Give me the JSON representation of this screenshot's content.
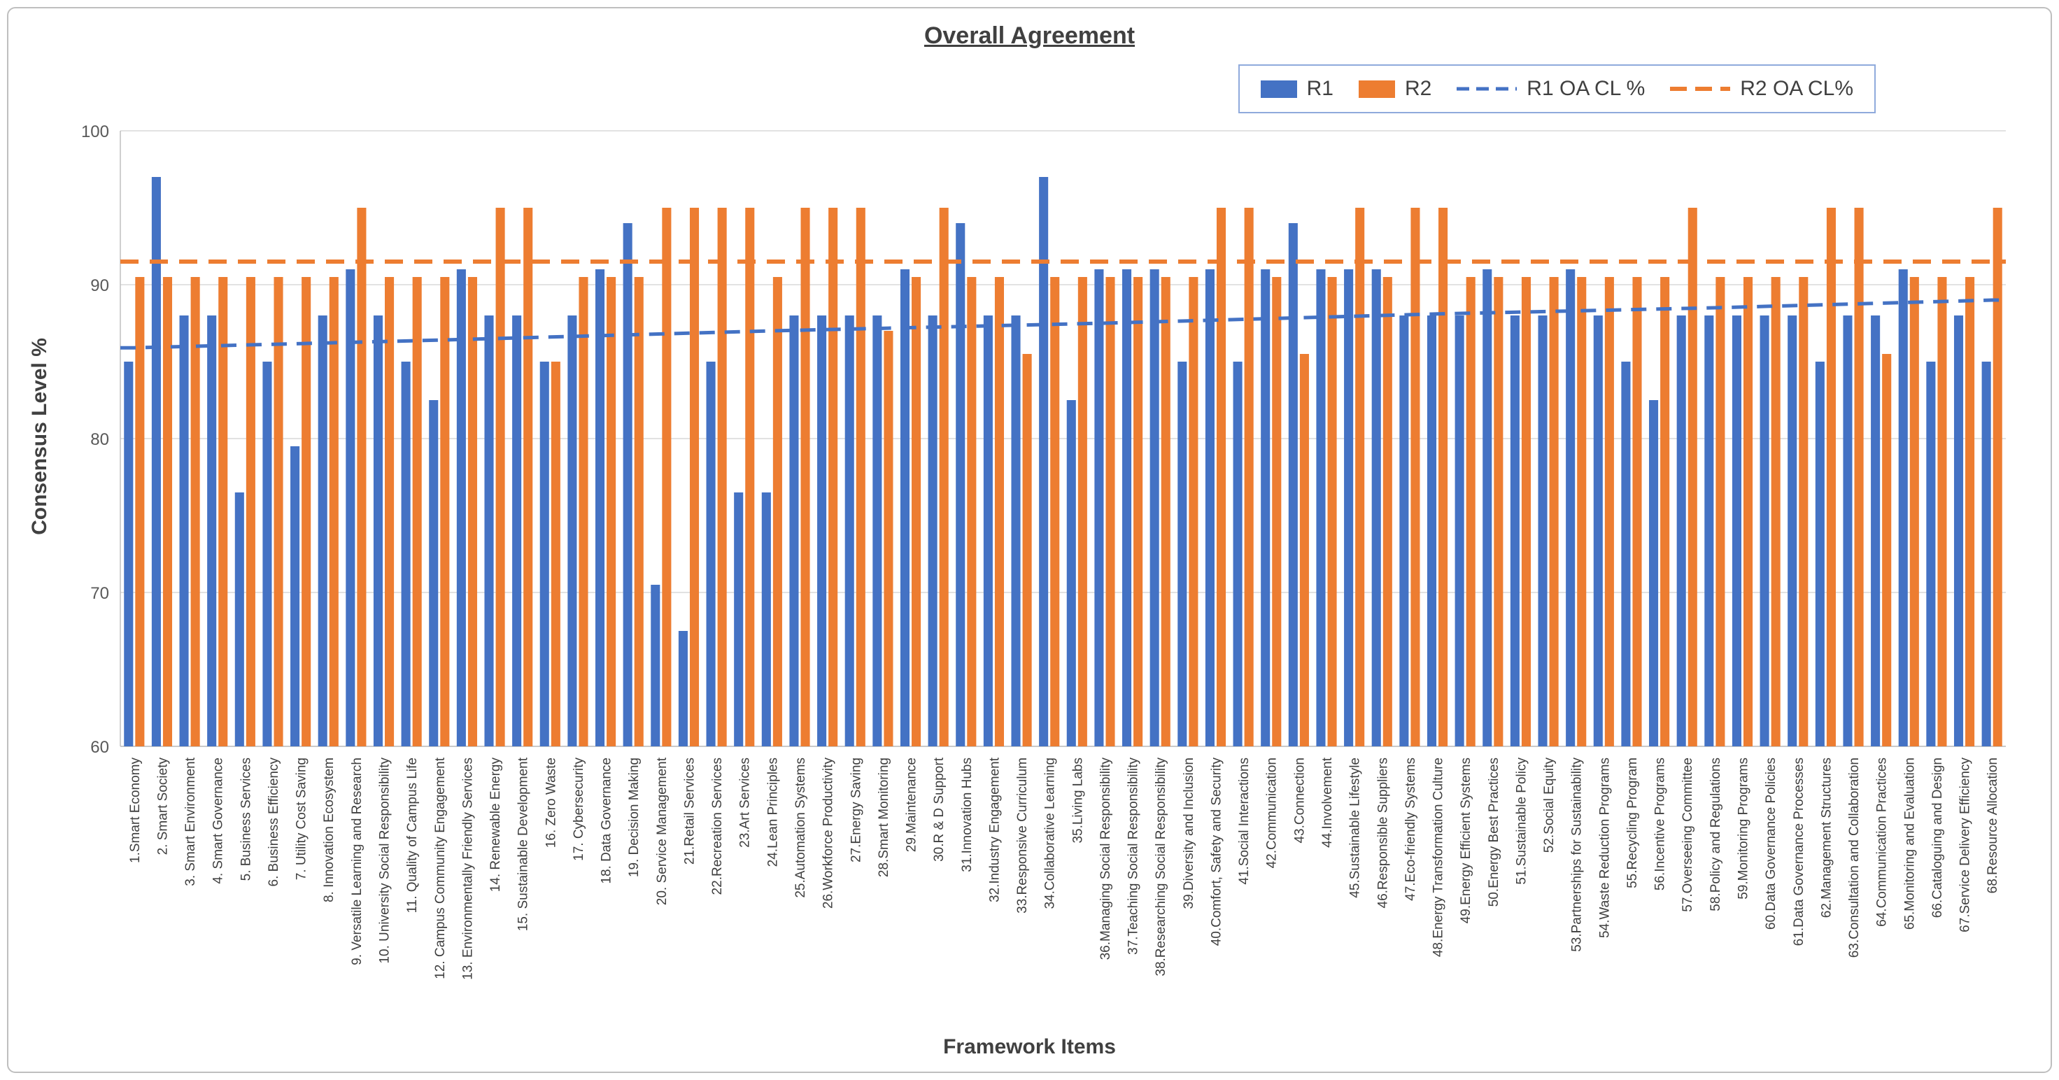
{
  "chart_data": {
    "type": "bar",
    "title": "Overall Agreement",
    "xlabel": "Framework Items",
    "ylabel": "Consensus Level %",
    "ylim": [
      60,
      100
    ],
    "ytick_step": 10,
    "grid": true,
    "legend_position": "top-right",
    "colors": {
      "r1": "#4472C4",
      "r2": "#ED7D31"
    },
    "legend": [
      "R1",
      "R2",
      "R1 OA CL %",
      "R2 OA CL%"
    ],
    "categories": [
      "1.Smart Economy",
      "2. Smart Society",
      "3. Smart Environment",
      "4. Smart Governance",
      "5. Business Services",
      "6. Business Efficiency",
      "7. Utility Cost Saving",
      "8. Innovation Ecosystem",
      "9. Versatile Learning and Research",
      "10. University Social Responsibility",
      "11. Quality of Campus Life",
      "12. Campus Community Engagement",
      "13. Environmentally Friendly Services",
      "14. Renewable Energy",
      "15. Sustainable Development",
      "16. Zero Waste",
      "17. Cybersecurity",
      "18. Data Governance",
      "19. Decision Making",
      "20. Service Management",
      "21.Retail Services",
      "22.Recreation Services",
      "23.Art Services",
      "24.Lean Principles",
      "25.Automation Systems",
      "26.Workforce Productivity",
      "27.Energy Saving",
      "28.Smart Monitoring",
      "29.Maintenance",
      "30.R & D Support",
      "31.Innovation Hubs",
      "32.Industry Engagement",
      "33.Responsive Curriculum",
      "34.Collaborative Learning",
      "35.Living Labs",
      "36.Managing Social Responsibility",
      "37.Teaching Social Responsibility",
      "38.Researching Social Responsibility",
      "39.Diversity and Inclusion",
      "40.Comfort, Safety and Security",
      "41.Social Interactions",
      "42.Communication",
      "43.Connection",
      "44.Involvement",
      "45.Sustainable Lifestyle",
      "46.Responsible Suppliers",
      "47.Eco-friendly Systems",
      "48.Energy Transformation Culture",
      "49.Energy Efficient Systems",
      "50.Energy Best Practices",
      "51.Sustainable Policy",
      "52.Social Equity",
      "53.Partnerships for Sustainability",
      "54.Waste Reduction Programs",
      "55.Recycling Program",
      "56.Incentive Programs",
      "57.Overseeing Committee",
      "58.Policy and Regulations",
      "59.Monitoring Programs",
      "60.Data Governance Policies",
      "61.Data Governance Processes",
      "62.Management Structures",
      "63.Consultation and Collaboration",
      "64.Communication Practices",
      "65.Monitoring and Evaluation",
      "66.Cataloguing and Design",
      "67.Service Delivery Efficiency",
      "68.Resource Allocation"
    ],
    "series": [
      {
        "name": "R1",
        "type": "bar",
        "color": "#4472C4",
        "values": [
          85,
          97,
          88,
          88,
          76.5,
          85,
          79.5,
          88,
          91,
          88,
          85,
          82.5,
          91,
          88,
          88,
          85,
          88,
          91,
          94,
          70.5,
          67.5,
          85,
          76.5,
          76.5,
          88,
          88,
          88,
          88,
          91,
          88,
          94,
          88,
          88,
          97,
          82.5,
          91,
          91,
          91,
          85,
          91,
          85,
          91,
          94,
          91,
          91,
          91,
          88,
          88,
          88,
          91,
          88,
          88,
          91,
          88,
          85,
          82.5,
          88,
          88,
          88,
          88,
          88,
          85,
          88,
          88,
          91,
          85,
          88,
          85
        ]
      },
      {
        "name": "R2",
        "type": "bar",
        "color": "#ED7D31",
        "values": [
          90.5,
          90.5,
          90.5,
          90.5,
          90.5,
          90.5,
          90.5,
          90.5,
          95,
          90.5,
          90.5,
          90.5,
          90.5,
          95,
          95,
          85,
          90.5,
          90.5,
          90.5,
          95,
          95,
          95,
          95,
          90.5,
          95,
          95,
          95,
          87,
          90.5,
          95,
          90.5,
          90.5,
          85.5,
          90.5,
          90.5,
          90.5,
          90.5,
          90.5,
          90.5,
          95,
          95,
          90.5,
          85.5,
          90.5,
          95,
          90.5,
          95,
          95,
          90.5,
          90.5,
          90.5,
          90.5,
          90.5,
          90.5,
          90.5,
          90.5,
          95,
          90.5,
          90.5,
          90.5,
          90.5,
          95,
          95,
          85.5,
          90.5,
          90.5,
          90.5,
          95
        ]
      }
    ],
    "lines": [
      {
        "name": "R1 OA CL %",
        "color": "#4472C4",
        "style": "dashed",
        "control_points": [
          [
            0,
            85.9
          ],
          [
            11,
            86.4
          ],
          [
            23,
            87.0
          ],
          [
            35,
            87.5
          ],
          [
            47,
            88.1
          ],
          [
            57,
            88.5
          ],
          [
            67,
            89.0
          ]
        ]
      },
      {
        "name": "R2 OA CL%",
        "color": "#ED7D31",
        "style": "dashed",
        "value": 91.5
      }
    ]
  }
}
